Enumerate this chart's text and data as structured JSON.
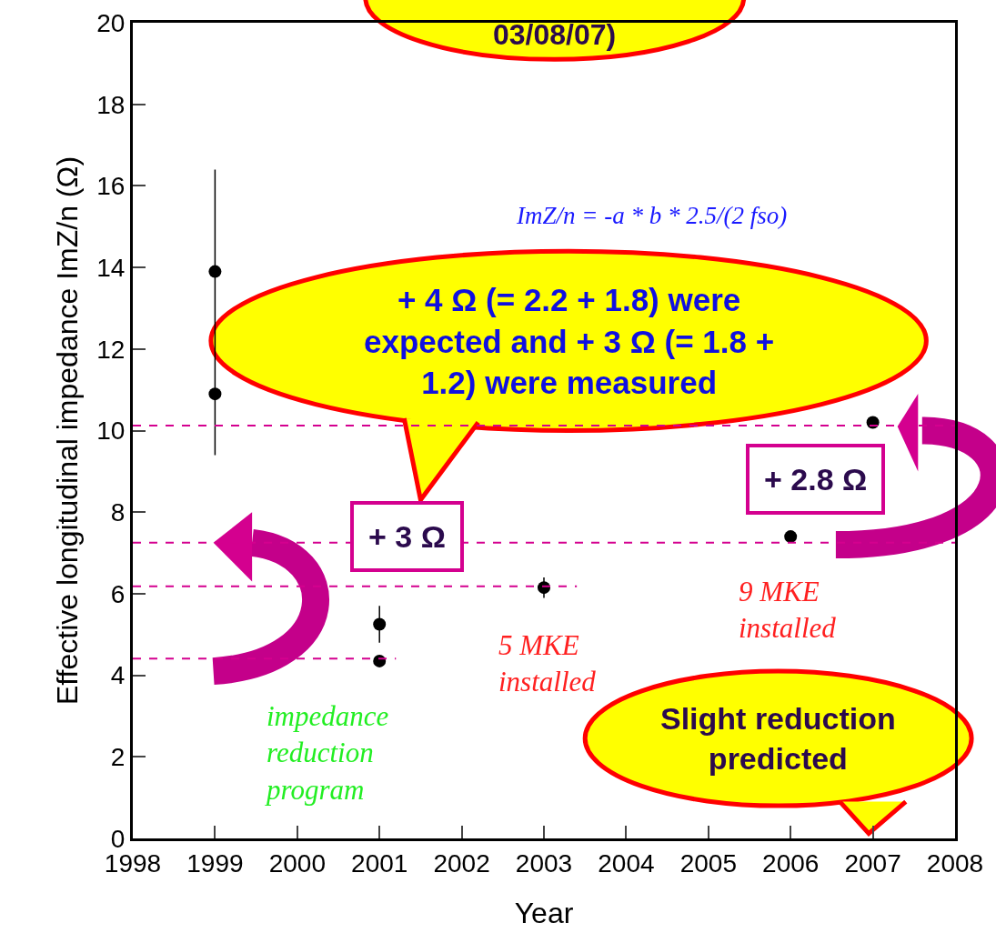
{
  "chart_data": {
    "type": "scatter",
    "xlabel": "Year",
    "ylabel": "Effective longitudinal impedance ImZ/n (Ω)",
    "xlim": [
      1998,
      2008
    ],
    "xticks": [
      1998,
      1999,
      2000,
      2001,
      2002,
      2003,
      2004,
      2005,
      2006,
      2007,
      2008
    ],
    "ylim": [
      0,
      20
    ],
    "yticks": [
      0,
      2,
      4,
      6,
      8,
      10,
      12,
      14,
      16,
      18,
      20
    ],
    "marker": "circle",
    "grid": false,
    "series": [
      {
        "color": "#000000",
        "x": [
          1999,
          1999,
          2001,
          2001,
          2003,
          2006,
          2007
        ],
        "values": [
          13.9,
          10.9,
          5.25,
          4.35,
          6.15,
          7.4,
          10.2
        ],
        "errors": [
          [
            9.4,
            16.4
          ],
          null,
          [
            4.8,
            5.7
          ],
          null,
          [
            5.9,
            6.4
          ],
          null,
          null
        ]
      },
      {
        "type": "line",
        "color": "#d4008f",
        "line_style": "dashed",
        "marker": "none",
        "x": [
          1998,
          2001.2
        ],
        "values": [
          4.41,
          4.41
        ]
      },
      {
        "type": "line",
        "color": "#d4008f",
        "line_style": "dashed",
        "marker": "none",
        "x": [
          1998,
          2003.4
        ],
        "values": [
          6.18,
          6.18
        ]
      },
      {
        "type": "line",
        "color": "#d4008f",
        "line_style": "dashed",
        "marker": "none",
        "x": [
          1998,
          2008
        ],
        "values": [
          7.25,
          7.25
        ]
      },
      {
        "type": "line",
        "color": "#d4008f",
        "line_style": "dashed",
        "marker": "none",
        "x": [
          1998,
          2008
        ],
        "values": [
          10.12,
          10.12
        ]
      }
    ],
    "annotations": [
      "03/08/07)",
      "ImZ/n = -a * b * 2.5/(2 fso)",
      "+ 4 Ω (= 2.2 + 1.8) were\nexpected and + 3 Ω (= 1.8 +\n1.2) were measured",
      "+ 3 Ω",
      "+ 2.8 Ω",
      "impedance\nreduction\nprogram",
      "5 MKE\ninstalled",
      "9 MKE\ninstalled",
      "Slight reduction\npredicted"
    ]
  }
}
